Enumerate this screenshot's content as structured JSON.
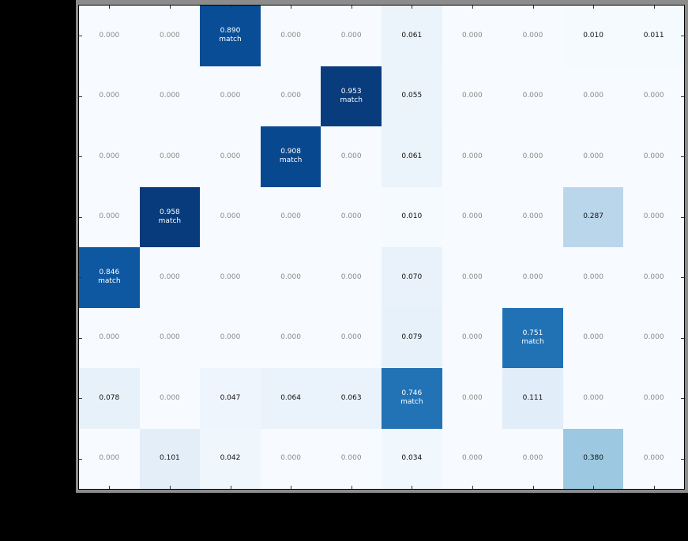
{
  "chart_data": {
    "type": "heatmap",
    "title": "",
    "xlabel": "",
    "ylabel": "",
    "colormap": "Blues",
    "n_rows": 8,
    "n_cols": 10,
    "annotation_label": "match",
    "values": [
      [
        0.0,
        0.0,
        0.89,
        0.0,
        0.0,
        0.061,
        0.0,
        0.0,
        0.01,
        0.011
      ],
      [
        0.0,
        0.0,
        0.0,
        0.0,
        0.953,
        0.055,
        0.0,
        0.0,
        0.0,
        0.0
      ],
      [
        0.0,
        0.0,
        0.0,
        0.908,
        0.0,
        0.061,
        0.0,
        0.0,
        0.0,
        0.0
      ],
      [
        0.0,
        0.958,
        0.0,
        0.0,
        0.0,
        0.01,
        0.0,
        0.0,
        0.287,
        0.0
      ],
      [
        0.846,
        0.0,
        0.0,
        0.0,
        0.0,
        0.07,
        0.0,
        0.0,
        0.0,
        0.0
      ],
      [
        0.0,
        0.0,
        0.0,
        0.0,
        0.0,
        0.079,
        0.0,
        0.751,
        0.0,
        0.0
      ],
      [
        0.078,
        0.0,
        0.047,
        0.064,
        0.063,
        0.746,
        0.0,
        0.111,
        0.0,
        0.0
      ],
      [
        0.0,
        0.101,
        0.042,
        0.0,
        0.0,
        0.034,
        0.0,
        0.0,
        0.38,
        0.0
      ]
    ],
    "matches": [
      {
        "row": 0,
        "col": 2
      },
      {
        "row": 1,
        "col": 4
      },
      {
        "row": 2,
        "col": 3
      },
      {
        "row": 3,
        "col": 1
      },
      {
        "row": 4,
        "col": 0
      },
      {
        "row": 5,
        "col": 7
      },
      {
        "row": 6,
        "col": 5
      }
    ],
    "text_colors": {
      "zero": "#8a8a8a",
      "nonzero": "#111111",
      "on_dark": "#ffffff"
    },
    "x_tick_labels": [],
    "y_tick_labels": [],
    "grid": false,
    "legend": null
  }
}
